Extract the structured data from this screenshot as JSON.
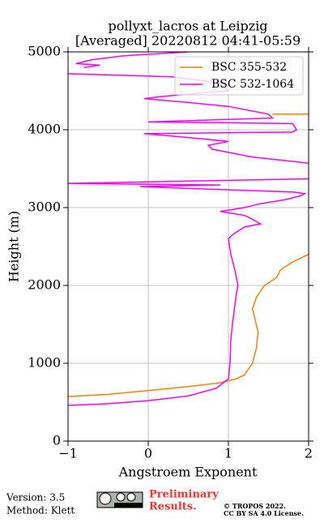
{
  "chart_data": {
    "type": "line",
    "title": [
      "pollyxt_lacros at Leipzig",
      "[Averaged] 20220812 04:41-05:59"
    ],
    "x_label": "Angstroem Exponent",
    "y_label": "Height (m)",
    "xlim": [
      -1,
      2
    ],
    "ylim": [
      0,
      5000
    ],
    "xticks": [
      {
        "value": -1,
        "label": "−1"
      },
      0,
      1,
      2
    ],
    "yticks": [
      0,
      1000,
      2000,
      3000,
      4000,
      5000
    ],
    "grid": true,
    "legend": "upper right",
    "series": [
      {
        "name": "BSC 355-532",
        "color": "#ff7f0e",
        "x": [
          -1,
          -0.5,
          0,
          0.5,
          0.9,
          1.1,
          1.2,
          1.3,
          1.35,
          1.37,
          1.3,
          1.35,
          1.45,
          1.6,
          1.65,
          1.8,
          2.0,
          null,
          1.55,
          2.0
        ],
        "y": [
          573,
          600,
          650,
          700,
          750,
          800,
          850,
          1000,
          1200,
          1400,
          1700,
          1850,
          2000,
          2100,
          2200,
          2300,
          2400,
          null,
          4200,
          4200
        ]
      },
      {
        "name": "BSC 532-1064",
        "color": "#ff00ff",
        "x": [
          -1,
          -0.5,
          0,
          0.5,
          0.85,
          1.0,
          1.02,
          1.03,
          1.05,
          1.1,
          1.12,
          1.08,
          1.03,
          1.0,
          1.05,
          1.2,
          1.4,
          1.3,
          1.2,
          0.9,
          1.2,
          1.4,
          1.7,
          1.9,
          1.95,
          1.8,
          0.4,
          -0.1,
          0.9,
          -1,
          2.0,
          null,
          2.0,
          1.3,
          0.8,
          0.75,
          1.0,
          0.5,
          -0.05,
          1.8,
          1.85,
          1.8,
          0,
          1.55,
          1.5,
          1.0,
          0.5,
          -0.05,
          0.2,
          1.0,
          0.9,
          0.3,
          -1,
          null,
          -0.8,
          -0.6,
          -0.9,
          -0.7,
          -0.3,
          0.5
        ],
        "y": [
          458,
          480,
          520,
          580,
          680,
          800,
          1000,
          1300,
          1500,
          1900,
          2000,
          2200,
          2400,
          2600,
          2650,
          2750,
          2790,
          2850,
          2900,
          2950,
          3000,
          3050,
          3100,
          3150,
          3180,
          3200,
          3250,
          3270,
          3290,
          3310,
          3370,
          null,
          3570,
          3650,
          3750,
          3800,
          3850,
          3900,
          3950,
          3970,
          4000,
          4080,
          4100,
          4150,
          4200,
          4300,
          4350,
          4400,
          4430,
          4500,
          4600,
          4680,
          4720,
          null,
          4800,
          4830,
          4850,
          4900,
          4950,
          5000
        ]
      }
    ]
  },
  "footer": {
    "version": "Version: 3.5",
    "method": "Method: Klett",
    "preliminary": [
      "Preliminary",
      "Results."
    ],
    "copyright": [
      "© TROPOS 2022.",
      "CC BY SA 4.0 License."
    ]
  }
}
